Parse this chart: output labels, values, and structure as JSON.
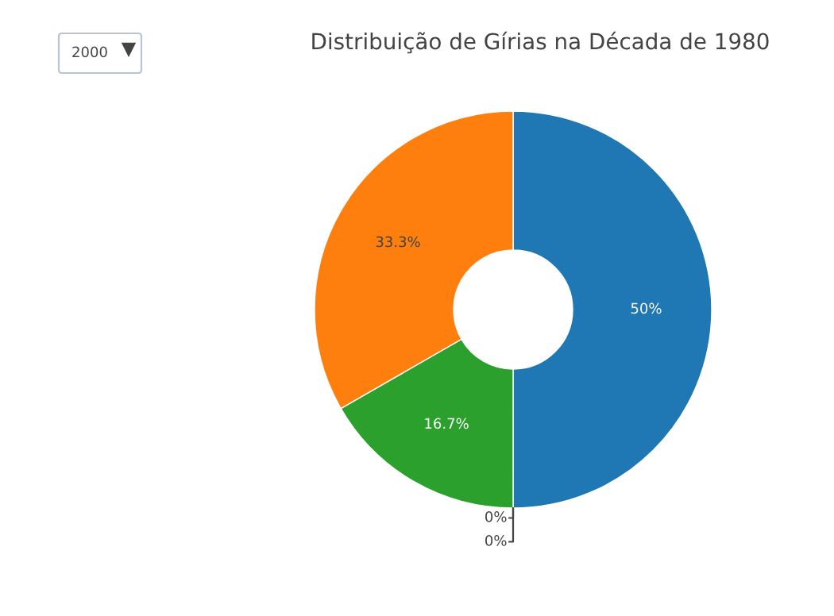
{
  "chart_data": {
    "type": "donut",
    "title": "Distribuição de Gírias na Década de 1980",
    "categories": [
      null,
      null,
      null,
      null,
      null
    ],
    "values": [
      50,
      0,
      0,
      16.7,
      33.3
    ],
    "colors": [
      "#1f77b4",
      "#d62728",
      "#9467bd",
      "#2ca02c",
      "#ff7f0e"
    ],
    "value_labels": [
      "50%",
      "0%",
      "0%",
      "16.7%",
      "33.3%"
    ],
    "annotations": [
      "2000"
    ],
    "legend": false
  }
}
